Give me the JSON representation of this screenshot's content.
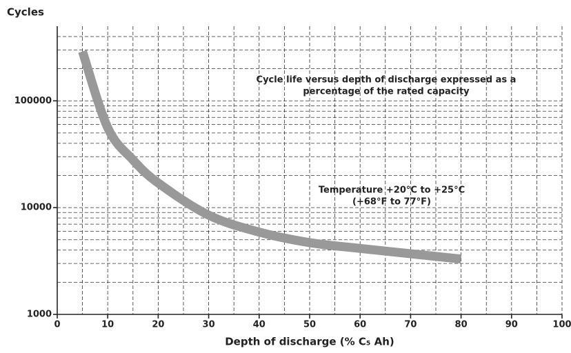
{
  "chart_data": {
    "type": "line",
    "ylabel": "Cycles",
    "xlabel": "Depth of discharge (% C₅ Ah)",
    "annotations": [
      [
        "Cycle life versus depth of discharge expressed as a",
        "percentage of the rated capacity"
      ],
      [
        "Temperature +20°C to +25°C",
        "(+68°F to 77°F)"
      ]
    ],
    "x": [
      5,
      10,
      15,
      20,
      30,
      40,
      50,
      60,
      70,
      80
    ],
    "series": [
      {
        "name": "Cycle life",
        "color": "#999999",
        "values": [
          290000,
          56000,
          28000,
          17000,
          8500,
          5900,
          4700,
          4150,
          3700,
          3300
        ]
      }
    ],
    "xlim": [
      0,
      100
    ],
    "xticks": [
      0,
      10,
      20,
      30,
      40,
      50,
      60,
      70,
      80,
      90,
      100
    ],
    "xminor": [
      5,
      15,
      25,
      35,
      45,
      55,
      65,
      75,
      85,
      95
    ],
    "ylim": [
      1000,
      500000
    ],
    "yticks": [
      1000,
      10000,
      100000
    ],
    "yminor": [
      2000,
      3000,
      4000,
      5000,
      6000,
      7000,
      8000,
      9000,
      20000,
      30000,
      40000,
      50000,
      60000,
      70000,
      80000,
      90000,
      200000,
      300000,
      400000
    ],
    "log_y": true,
    "grid": true
  }
}
